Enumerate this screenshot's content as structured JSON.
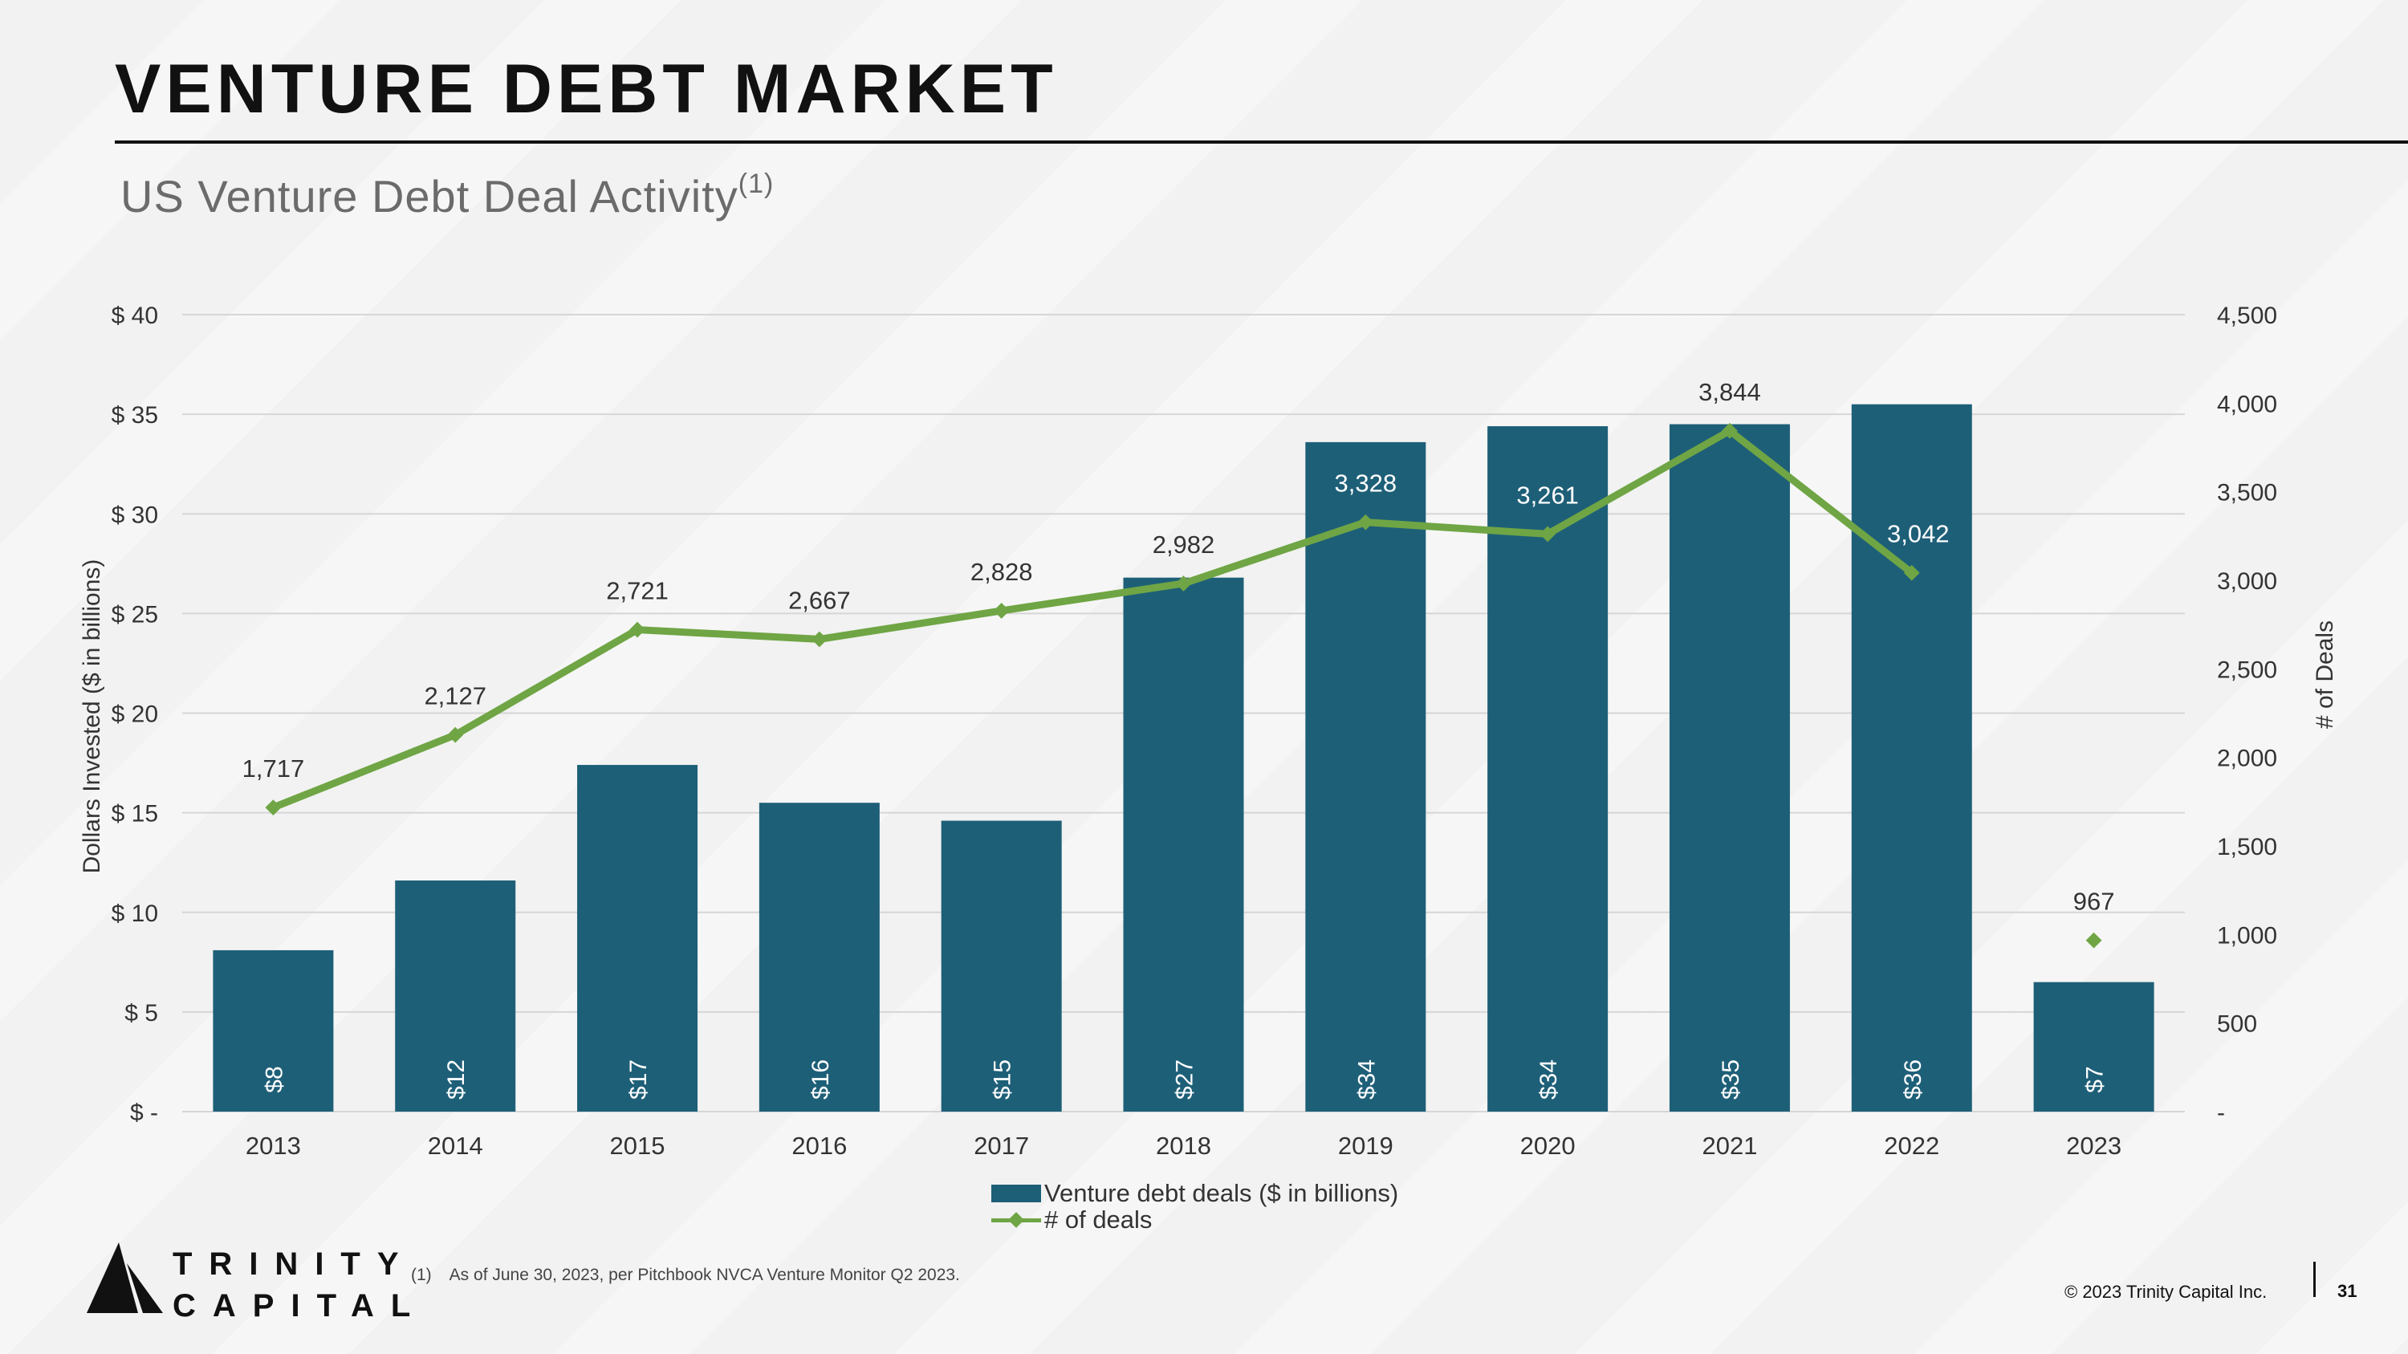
{
  "page": {
    "title": "VENTURE DEBT MARKET",
    "subtitle": "US Venture Debt Deal Activity",
    "subtitle_ref": "(1)",
    "footnote_num": "(1)",
    "footnote_text": "As of June 30, 2023, per Pitchbook NVCA Venture Monitor Q2 2023.",
    "copyright": "© 2023 Trinity Capital Inc.",
    "page_number": "31",
    "logo_line1": "TRINITY",
    "logo_line2": "CAPITAL"
  },
  "colors": {
    "bar": "#1e5f78",
    "line": "#6fa544",
    "grid": "#d6d6d6",
    "text": "#333333"
  },
  "chart_data": {
    "type": "bar",
    "categories": [
      "2013",
      "2014",
      "2015",
      "2016",
      "2017",
      "2018",
      "2019",
      "2020",
      "2021",
      "2022",
      "2023"
    ],
    "series": [
      {
        "name": "Venture debt deals ($ in billions)",
        "type": "bar",
        "axis": "left",
        "values": [
          8.1,
          11.6,
          17.4,
          15.5,
          14.6,
          26.8,
          33.6,
          34.4,
          34.5,
          35.5,
          6.5
        ],
        "labels": [
          "$8",
          "$12",
          "$17",
          "$16",
          "$15",
          "$27",
          "$34",
          "$34",
          "$35",
          "$36",
          "$7"
        ]
      },
      {
        "name": "# of deals",
        "type": "line",
        "axis": "right",
        "values": [
          1717,
          2127,
          2721,
          2667,
          2828,
          2982,
          3328,
          3261,
          3844,
          3042,
          967
        ],
        "labels": [
          "1,717",
          "2,127",
          "2,721",
          "2,667",
          "2,828",
          "2,982",
          "3,328",
          "3,261",
          "3,844",
          "3,042",
          "967"
        ],
        "standalone_last_point": true
      }
    ],
    "ylabel": "Dollars Invested ($ in billions)",
    "y2label": "# of Deals",
    "ylim": [
      0,
      40
    ],
    "y2lim": [
      0,
      4500
    ],
    "yticks": [
      0,
      5,
      10,
      15,
      20,
      25,
      30,
      35,
      40
    ],
    "ytick_labels": [
      "$ -",
      "$ 5",
      "$ 10",
      "$ 15",
      "$ 20",
      "$ 25",
      "$ 30",
      "$ 35",
      "$ 40"
    ],
    "y2ticks": [
      0,
      500,
      1000,
      1500,
      2000,
      2500,
      3000,
      3500,
      4000,
      4500
    ],
    "y2tick_labels": [
      "-",
      "500",
      "1,000",
      "1,500",
      "2,000",
      "2,500",
      "3,000",
      "3,500",
      "4,000",
      "4,500"
    ],
    "grid": true,
    "legend_position": "bottom"
  }
}
